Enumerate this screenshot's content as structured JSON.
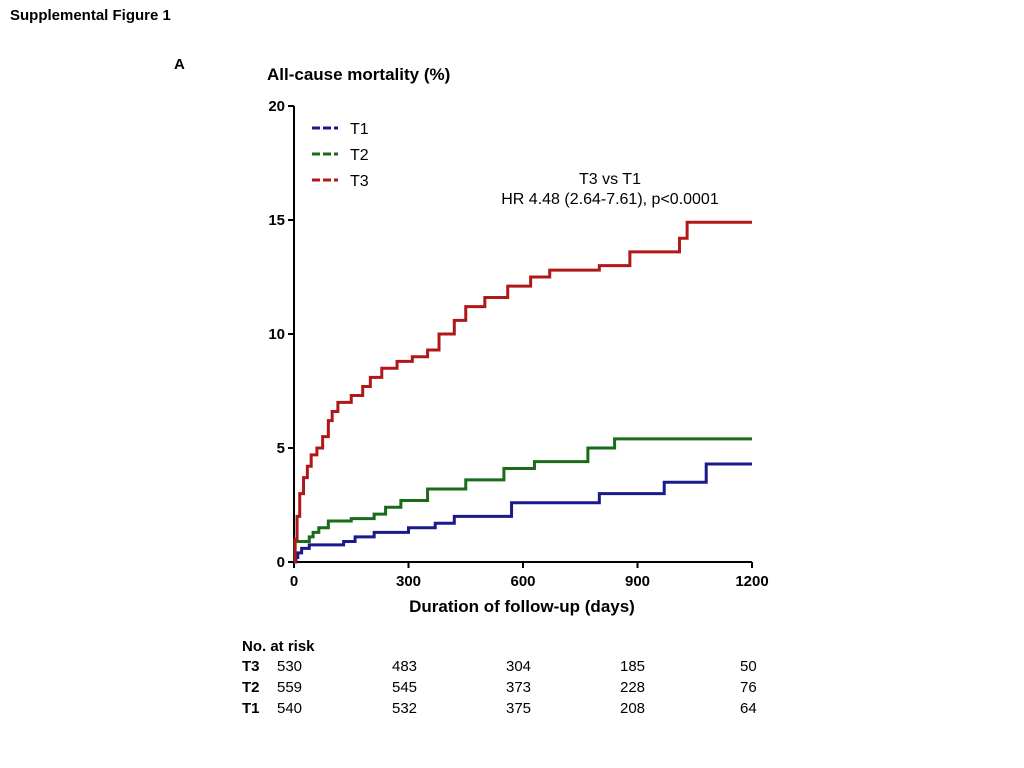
{
  "figure_title": "Supplemental Figure 1",
  "panel_label": "A",
  "chart_data": {
    "type": "line",
    "step": true,
    "title": "All-cause mortality (%)",
    "xlabel": "Duration of follow-up (days)",
    "ylabel": "",
    "xlim": [
      0,
      1200
    ],
    "ylim": [
      0,
      20
    ],
    "xticks": [
      0,
      300,
      600,
      900,
      1200
    ],
    "yticks": [
      0,
      5,
      10,
      15,
      20
    ],
    "grid": false,
    "legend_position": "top-left",
    "annotation": [
      "T3 vs T1",
      "HR 4.48 (2.64-7.61), p<0.0001"
    ],
    "series": [
      {
        "name": "T1",
        "color": "#1a1a8c",
        "x": [
          0,
          5,
          10,
          20,
          40,
          130,
          160,
          210,
          300,
          370,
          420,
          570,
          800,
          970,
          1080,
          1200
        ],
        "y": [
          0,
          0.2,
          0.4,
          0.6,
          0.75,
          0.9,
          1.1,
          1.3,
          1.5,
          1.7,
          2.0,
          2.6,
          3.0,
          3.5,
          4.3,
          4.3
        ]
      },
      {
        "name": "T2",
        "color": "#1a6b1a",
        "x": [
          0,
          2,
          40,
          50,
          65,
          90,
          150,
          210,
          240,
          280,
          350,
          450,
          550,
          630,
          770,
          840,
          1200
        ],
        "y": [
          0,
          0.9,
          1.1,
          1.3,
          1.5,
          1.8,
          1.9,
          2.1,
          2.4,
          2.7,
          3.2,
          3.6,
          4.1,
          4.4,
          5.0,
          5.4,
          5.4
        ]
      },
      {
        "name": "T3",
        "color": "#b01818",
        "x": [
          0,
          3,
          8,
          15,
          25,
          35,
          45,
          60,
          75,
          90,
          100,
          115,
          150,
          180,
          200,
          230,
          270,
          310,
          350,
          380,
          420,
          450,
          500,
          560,
          620,
          670,
          800,
          880,
          1010,
          1030,
          1200
        ],
        "y": [
          0,
          1.0,
          2.0,
          3.0,
          3.7,
          4.2,
          4.7,
          5.0,
          5.5,
          6.2,
          6.6,
          7.0,
          7.3,
          7.7,
          8.1,
          8.5,
          8.8,
          9.0,
          9.3,
          10.0,
          10.6,
          11.2,
          11.6,
          12.1,
          12.5,
          12.8,
          13.0,
          13.6,
          14.2,
          14.9,
          14.9
        ]
      }
    ]
  },
  "risk_table": {
    "header": "No. at risk",
    "rows": [
      {
        "group": "T3",
        "values": [
          "530",
          "483",
          "304",
          "185",
          "50"
        ]
      },
      {
        "group": "T2",
        "values": [
          "559",
          "545",
          "373",
          "228",
          "76"
        ]
      },
      {
        "group": "T1",
        "values": [
          "540",
          "532",
          "375",
          "208",
          "64"
        ]
      }
    ]
  }
}
